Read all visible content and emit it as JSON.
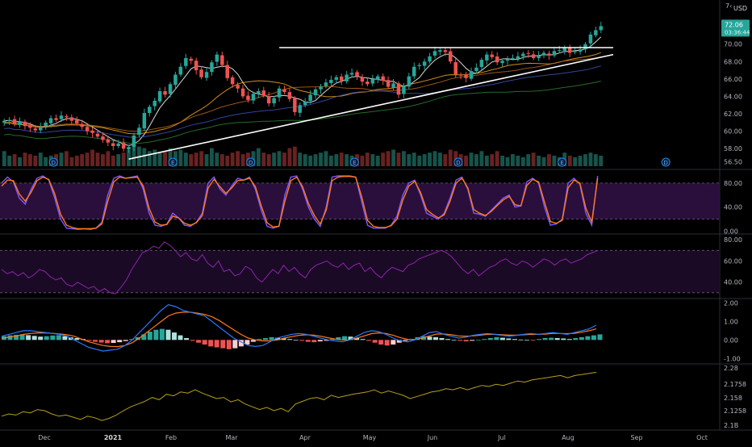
{
  "colors": {
    "background": "#000000",
    "up_candle": "#26a69a",
    "down_candle": "#ef5350",
    "trendline": "#ffffff",
    "ema_short": "#ffffff",
    "ma_orange": "#f7a61c",
    "ma_brown": "#b5651d",
    "ma_green": "#2e7d32",
    "ma_blue": "#3f51b5",
    "stoch_k": "#7e57ff",
    "stoch_d": "#ff7a1a",
    "stoch_band": "#2a0f3d",
    "rsi_line": "#8e24aa",
    "rsi_band": "#1a0a26",
    "macd_line": "#2979ff",
    "macd_signal": "#ff7a1a",
    "hist_up": "#26a69a",
    "hist_up_light": "#b2dfdb",
    "hist_down": "#ef5350",
    "hist_down_light": "#ffcdd2",
    "ratio_line": "#b59f1e",
    "price_tag": "#26a69a",
    "event_marker": "#1e88e5"
  },
  "price_tag": {
    "value": "72.06",
    "countdown": "03:36:44"
  },
  "header": {
    "partial_label": "7‹",
    "currency": "USD"
  },
  "chart_data": [
    {
      "type": "candlestick",
      "panel": "price",
      "title": "",
      "ylabel": "USD",
      "ylim": [
        55.8,
        74.6
      ],
      "y_ticks": [
        "70.00",
        "68.00",
        "66.00",
        "64.00",
        "62.00",
        "60.00",
        "58.00",
        "56.50"
      ],
      "x_ticks": [
        "Dec",
        "2021",
        "Feb",
        "Mar",
        "Apr",
        "May",
        "Jun",
        "Jul",
        "Aug",
        "Sep",
        "Oct"
      ],
      "closes": [
        61.2,
        61.3,
        60.8,
        61.1,
        60.6,
        60.4,
        60.1,
        60.5,
        61.0,
        61.5,
        61.3,
        61.8,
        61.6,
        61.2,
        60.9,
        60.5,
        60.0,
        59.8,
        59.4,
        59.0,
        58.7,
        58.3,
        58.6,
        58.0,
        58.2,
        59.5,
        60.4,
        62.1,
        62.8,
        63.5,
        64.6,
        64.2,
        65.4,
        66.5,
        67.4,
        68.4,
        68.1,
        67.0,
        66.2,
        66.8,
        67.9,
        68.8,
        67.6,
        66.1,
        65.4,
        64.9,
        64.0,
        63.6,
        64.3,
        64.6,
        64.1,
        63.2,
        63.8,
        64.9,
        64.5,
        63.7,
        62.2,
        63.0,
        63.4,
        64.2,
        64.8,
        65.1,
        65.6,
        65.9,
        66.2,
        65.8,
        66.5,
        66.7,
        66.3,
        65.7,
        65.4,
        66.0,
        66.3,
        65.8,
        65.1,
        65.5,
        64.2,
        65.2,
        66.3,
        67.4,
        67.6,
        68.0,
        68.6,
        69.2,
        69.3,
        69.1,
        68.0,
        66.5,
        66.4,
        66.1,
        66.9,
        67.3,
        68.2,
        68.8,
        68.5,
        67.9,
        68.1,
        68.3,
        68.4,
        68.6,
        68.9,
        68.9,
        68.4,
        68.7,
        69.0,
        68.7,
        69.2,
        69.3,
        69.6,
        69.0,
        69.2,
        69.4,
        70.0,
        71.1,
        71.6,
        72.06
      ],
      "volumes": [
        1.0,
        0.7,
        0.8,
        0.6,
        0.9,
        0.8,
        0.7,
        0.9,
        0.6,
        0.7,
        0.8,
        0.9,
        1.0,
        0.6,
        0.7,
        0.8,
        0.9,
        1.1,
        0.9,
        0.8,
        1.0,
        0.7,
        0.8,
        0.9,
        1.1,
        1.4,
        1.3,
        1.2,
        1.0,
        1.1,
        0.9,
        1.0,
        1.2,
        1.0,
        1.1,
        0.9,
        0.8,
        0.9,
        1.0,
        0.8,
        1.2,
        0.9,
        0.8,
        0.7,
        0.9,
        1.0,
        0.8,
        0.9,
        1.0,
        1.2,
        0.9,
        0.8,
        0.9,
        1.0,
        0.9,
        1.2,
        1.3,
        0.9,
        0.8,
        0.7,
        0.8,
        0.9,
        1.0,
        0.7,
        0.8,
        0.9,
        0.8,
        0.7,
        0.8,
        0.7,
        0.9,
        0.8,
        0.7,
        0.9,
        1.0,
        1.1,
        0.9,
        1.0,
        0.8,
        0.9,
        0.7,
        0.8,
        0.9,
        1.0,
        0.9,
        0.8,
        1.1,
        1.0,
        0.8,
        0.7,
        0.9,
        0.8,
        1.0,
        0.7,
        0.8,
        1.0,
        0.7,
        0.6,
        0.8,
        0.7,
        0.6,
        0.8,
        0.9,
        0.7,
        0.6,
        0.8,
        0.7,
        0.6,
        0.9,
        0.7,
        0.6,
        0.7,
        0.8,
        0.9,
        0.8,
        0.7
      ],
      "horizontal_resistance": 69.6,
      "rising_trendline": [
        [
          24,
          56.8
        ],
        [
          115,
          68.8
        ]
      ],
      "event_markers": [
        {
          "label": "D",
          "index": 10
        },
        {
          "label": "E",
          "index": 33
        },
        {
          "label": "D",
          "index": 48
        },
        {
          "label": "E",
          "index": 68
        },
        {
          "label": "D",
          "index": 88
        },
        {
          "label": "E",
          "index": 108
        },
        {
          "label": "D",
          "index": 128
        }
      ]
    },
    {
      "type": "line",
      "panel": "stochastic",
      "ylim": [
        -2,
        100
      ],
      "y_ticks": [
        "80.00",
        "40.00",
        "0.00"
      ],
      "band": [
        20,
        80
      ],
      "series": [
        {
          "values": [
            80,
            90,
            82,
            55,
            45,
            70,
            88,
            92,
            85,
            55,
            20,
            5,
            4,
            3,
            4,
            3,
            5,
            15,
            60,
            88,
            92,
            88,
            90,
            92,
            70,
            30,
            10,
            8,
            12,
            30,
            22,
            10,
            8,
            15,
            30,
            80,
            90,
            70,
            60,
            75,
            88,
            85,
            90,
            70,
            35,
            8,
            5,
            8,
            60,
            90,
            92,
            70,
            40,
            20,
            8,
            40,
            90,
            92,
            92,
            92,
            90,
            50,
            10,
            5,
            5,
            5,
            10,
            25,
            60,
            80,
            85,
            60,
            30,
            25,
            20,
            30,
            55,
            85,
            90,
            70,
            30,
            28,
            25,
            35,
            45,
            55,
            60,
            40,
            42,
            82,
            88,
            80,
            40,
            10,
            12,
            20,
            80,
            88,
            78,
            30,
            10,
            92
          ]
        },
        {
          "values": [
            75,
            85,
            84,
            62,
            50,
            65,
            84,
            90,
            86,
            62,
            28,
            10,
            6,
            4,
            4,
            4,
            5,
            12,
            50,
            82,
            90,
            88,
            89,
            90,
            75,
            38,
            15,
            10,
            11,
            25,
            22,
            13,
            10,
            14,
            26,
            72,
            86,
            74,
            63,
            72,
            84,
            85,
            88,
            74,
            42,
            14,
            7,
            8,
            50,
            84,
            90,
            74,
            46,
            26,
            12,
            35,
            84,
            90,
            91,
            91,
            90,
            58,
            18,
            8,
            6,
            6,
            9,
            20,
            52,
            75,
            83,
            64,
            36,
            28,
            22,
            27,
            50,
            80,
            88,
            72,
            36,
            30,
            26,
            33,
            43,
            52,
            58,
            44,
            42,
            76,
            86,
            82,
            48,
            16,
            13,
            18,
            72,
            85,
            80,
            38,
            15,
            88
          ]
        }
      ]
    },
    {
      "type": "line",
      "panel": "rsi",
      "ylim": [
        26,
        84
      ],
      "y_ticks": [
        "80.00",
        "60.00",
        "40.00"
      ],
      "band": [
        30,
        70
      ],
      "series": [
        {
          "values": [
            52,
            48,
            50,
            46,
            49,
            44,
            47,
            52,
            50,
            45,
            42,
            44,
            38,
            36,
            40,
            37,
            34,
            36,
            31,
            34,
            30,
            29,
            35,
            42,
            52,
            60,
            68,
            70,
            74,
            72,
            78,
            75,
            70,
            64,
            68,
            62,
            60,
            66,
            58,
            54,
            60,
            50,
            52,
            46,
            48,
            55,
            52,
            44,
            40,
            46,
            52,
            48,
            56,
            50,
            54,
            48,
            44,
            52,
            56,
            58,
            60,
            56,
            54,
            58,
            52,
            56,
            58,
            50,
            54,
            48,
            44,
            50,
            54,
            52,
            50,
            56,
            58,
            62,
            64,
            66,
            68,
            70,
            68,
            64,
            58,
            52,
            48,
            52,
            46,
            50,
            54,
            56,
            60,
            62,
            58,
            56,
            60,
            58,
            54,
            58,
            62,
            60,
            56,
            60,
            62,
            58,
            60,
            62,
            66,
            68,
            70
          ]
        }
      ]
    },
    {
      "type": "bar+line",
      "panel": "macd",
      "ylim": [
        -1.25,
        2.15
      ],
      "y_ticks": [
        "2.00",
        "1.00",
        "0.00",
        "-1.00"
      ],
      "histogram": [
        0.2,
        0.25,
        0.28,
        0.3,
        0.26,
        0.22,
        0.18,
        0.2,
        0.24,
        0.26,
        0.2,
        0.14,
        0.1,
        0.05,
        -0.05,
        -0.1,
        -0.14,
        -0.18,
        -0.16,
        -0.12,
        -0.06,
        0.05,
        0.15,
        0.3,
        0.45,
        0.55,
        0.6,
        0.55,
        0.4,
        0.25,
        0.1,
        -0.05,
        -0.15,
        -0.25,
        -0.35,
        -0.4,
        -0.45,
        -0.5,
        -0.45,
        -0.35,
        -0.25,
        -0.1,
        0.05,
        0.1,
        0.15,
        0.12,
        0.08,
        0.05,
        0.0,
        -0.05,
        -0.1,
        -0.12,
        -0.08,
        -0.05,
        0.05,
        0.15,
        0.2,
        0.18,
        0.1,
        0.05,
        -0.05,
        -0.15,
        -0.25,
        -0.3,
        -0.25,
        -0.15,
        -0.05,
        0.05,
        0.15,
        0.2,
        0.18,
        0.15,
        0.1,
        0.05,
        0.0,
        -0.05,
        -0.08,
        -0.05,
        0.0,
        0.05,
        0.1,
        0.15,
        0.12,
        0.08,
        0.05,
        0.02,
        0.0,
        -0.02,
        0.05,
        0.1,
        0.12,
        0.1,
        0.08,
        0.05,
        0.1,
        0.15,
        0.2,
        0.25,
        0.3
      ],
      "series": [
        {
          "name": "",
          "values": [
            0.2,
            0.3,
            0.4,
            0.5,
            0.5,
            0.45,
            0.4,
            0.35,
            0.3,
            0.2,
            0.0,
            -0.2,
            -0.4,
            -0.5,
            -0.6,
            -0.55,
            -0.5,
            -0.3,
            0.0,
            0.4,
            0.8,
            1.2,
            1.6,
            1.9,
            1.8,
            1.6,
            1.5,
            1.4,
            1.3,
            1.0,
            0.7,
            0.4,
            0.1,
            -0.1,
            -0.3,
            -0.35,
            -0.3,
            -0.1,
            0.1,
            0.2,
            0.3,
            0.35,
            0.3,
            0.2,
            0.1,
            0.0,
            -0.05,
            -0.1,
            0.0,
            0.2,
            0.4,
            0.5,
            0.45,
            0.3,
            0.1,
            -0.05,
            -0.1,
            0.0,
            0.2,
            0.4,
            0.45,
            0.3,
            0.2,
            0.1,
            0.15,
            0.25,
            0.3,
            0.35,
            0.3,
            0.25,
            0.2,
            0.25,
            0.3,
            0.35,
            0.3,
            0.35,
            0.4,
            0.35,
            0.3,
            0.4,
            0.5,
            0.6,
            0.8
          ]
        },
        {
          "name": "",
          "values": [
            0.1,
            0.15,
            0.2,
            0.3,
            0.35,
            0.38,
            0.38,
            0.36,
            0.33,
            0.28,
            0.2,
            0.05,
            -0.1,
            -0.2,
            -0.3,
            -0.35,
            -0.36,
            -0.3,
            -0.15,
            0.1,
            0.4,
            0.7,
            1.0,
            1.3,
            1.45,
            1.5,
            1.5,
            1.45,
            1.38,
            1.25,
            1.05,
            0.8,
            0.55,
            0.3,
            0.1,
            0.0,
            -0.05,
            -0.05,
            0.0,
            0.1,
            0.18,
            0.25,
            0.28,
            0.26,
            0.2,
            0.12,
            0.05,
            0.0,
            0.0,
            0.1,
            0.22,
            0.34,
            0.38,
            0.35,
            0.25,
            0.12,
            0.03,
            0.02,
            0.1,
            0.22,
            0.32,
            0.32,
            0.28,
            0.22,
            0.2,
            0.22,
            0.26,
            0.3,
            0.3,
            0.28,
            0.26,
            0.26,
            0.28,
            0.3,
            0.3,
            0.32,
            0.35,
            0.35,
            0.34,
            0.36,
            0.42,
            0.5,
            0.6
          ]
        }
      ]
    },
    {
      "type": "line",
      "panel": "ratio",
      "ylim": [
        2.087,
        2.295
      ],
      "y_ticks": [
        "2.28",
        "2.1758",
        "2.158",
        "2.1258",
        "2.1B"
      ],
      "series": [
        {
          "name": "",
          "values": [
            0.18,
            0.22,
            0.2,
            0.26,
            0.24,
            0.3,
            0.28,
            0.22,
            0.18,
            0.2,
            0.16,
            0.12,
            0.18,
            0.15,
            0.1,
            0.14,
            0.2,
            0.28,
            0.35,
            0.4,
            0.45,
            0.52,
            0.48,
            0.58,
            0.55,
            0.62,
            0.6,
            0.66,
            0.6,
            0.55,
            0.5,
            0.52,
            0.44,
            0.48,
            0.4,
            0.35,
            0.3,
            0.34,
            0.28,
            0.32,
            0.26,
            0.4,
            0.45,
            0.5,
            0.52,
            0.48,
            0.56,
            0.52,
            0.55,
            0.58,
            0.6,
            0.62,
            0.66,
            0.6,
            0.64,
            0.6,
            0.56,
            0.5,
            0.54,
            0.58,
            0.62,
            0.64,
            0.68,
            0.66,
            0.7,
            0.66,
            0.7,
            0.74,
            0.72,
            0.76,
            0.74,
            0.78,
            0.82,
            0.8,
            0.84,
            0.86,
            0.88,
            0.9,
            0.92,
            0.88,
            0.92,
            0.94,
            0.96,
            0.98
          ]
        }
      ]
    }
  ]
}
